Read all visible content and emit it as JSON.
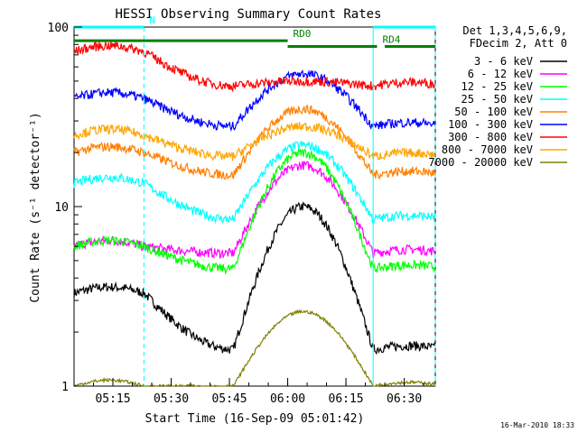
{
  "chart_data": {
    "type": "line",
    "title": "HESSI Observing Summary Count Rates",
    "xlabel": "Start Time (16-Sep-09 05:01:42)",
    "ylabel": "Count Rate (s⁻¹ detector⁻¹)",
    "yscale": "log",
    "ylim": [
      1,
      100
    ],
    "xlim_minutes": [
      5.0,
      98.0
    ],
    "grid": false,
    "legend_position": "right",
    "legend_header": [
      "Det 1,3,4,5,6,9,",
      "FDecim 2, Att 0"
    ],
    "footer_date": "16-Mar-2010 18:33",
    "y_tick_labels": [
      {
        "value": 1,
        "label": "1"
      },
      {
        "value": 10,
        "label": "10"
      },
      {
        "value": 100,
        "label": "100"
      }
    ],
    "x_ticks": [
      {
        "minute": 15,
        "label": "05:15"
      },
      {
        "minute": 30,
        "label": "05:30"
      },
      {
        "minute": 45,
        "label": "05:45"
      },
      {
        "minute": 60,
        "label": "06:00"
      },
      {
        "minute": 75,
        "label": "06:15"
      },
      {
        "minute": 90,
        "label": "06:30"
      }
    ],
    "flag_bars": [
      {
        "label": "N",
        "color": "#00ffff",
        "y": 100,
        "ranges": [
          [
            5.0,
            23.0
          ],
          [
            82.0,
            98.0
          ]
        ]
      },
      {
        "label": "RD0",
        "color": "#008000",
        "y": 84,
        "ranges": [
          [
            5.0,
            60.0
          ]
        ]
      },
      {
        "label": "RD4",
        "color": "#008000",
        "y": 78,
        "ranges": [
          [
            60.0,
            83.0
          ],
          [
            85.0,
            98.0
          ]
        ]
      }
    ],
    "night_lines": [
      {
        "minute": 23.0,
        "style": "dashed"
      },
      {
        "minute": 82.0,
        "style": "solid"
      },
      {
        "minute": 98.0,
        "style": "dashed"
      }
    ],
    "series": [
      {
        "name": "3 - 6 keV",
        "color": "#000000",
        "day": 3.3,
        "night": 1.6,
        "peak": 10.0
      },
      {
        "name": "6 - 12 keV",
        "color": "#ff00ff",
        "day": 6.0,
        "night": 5.5,
        "peak": 17.0
      },
      {
        "name": "12 - 25 keV",
        "color": "#00ff00",
        "day": 6.0,
        "night": 4.5,
        "peak": 20.0
      },
      {
        "name": "25 - 50 keV",
        "color": "#00ffff",
        "day": 13.5,
        "night": 8.5,
        "peak": 22.0
      },
      {
        "name": "50 - 100 keV",
        "color": "#ff8000",
        "day": 20.0,
        "night": 15.0,
        "peak": 35.0
      },
      {
        "name": "100 - 300 keV",
        "color": "#0000ff",
        "day": 40.0,
        "night": 28.0,
        "peak": 55.0
      },
      {
        "name": "300 - 800 keV",
        "color": "#ff0000",
        "day": 73.0,
        "night": 47.0,
        "peak": 50.0
      },
      {
        "name": "800 - 7000 keV",
        "color": "#ffa500",
        "day": 25.0,
        "night": 19.0,
        "peak": 28.0
      },
      {
        "name": "7000 - 20000 keV",
        "color": "#808000",
        "day": 1.0,
        "night": 1.0,
        "peak": 2.6
      }
    ]
  }
}
